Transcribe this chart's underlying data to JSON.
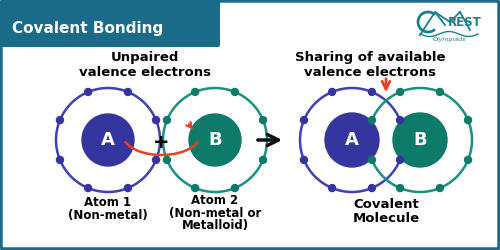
{
  "bg_color": "#ffffff",
  "border_color": "#1a6b8a",
  "header_color": "#1a6b8a",
  "header_text": "Covalent Bonding",
  "header_text_color": "#ffffff",
  "atom_a_nucleus_color": "#3535a0",
  "atom_a_orbit_color": "#4040b8",
  "atom_a_label": "A",
  "atom_b_nucleus_color": "#0e7a6a",
  "atom_b_orbit_color": "#1a9080",
  "atom_b_label": "B",
  "electron_color_a": "#3535a0",
  "electron_color_b": "#0e7a6a",
  "label1_line1": "Unpaired",
  "label1_line2": "valence electrons",
  "label2_line1": "Sharing of available",
  "label2_line2": "valence electrons",
  "atom1_label_line1": "Atom 1",
  "atom1_label_line2": "(Non-metal)",
  "atom2_label_line1": "Atom 2",
  "atom2_label_line2": "(Non-metal or",
  "atom2_label_line3": "Metalloid)",
  "molecule_label1": "Covalent",
  "molecule_label2": "Molecule",
  "arrow_color": "#e84020",
  "main_arrow_color": "#111111",
  "plus_sign": "+",
  "crest_teal": "#1a8090",
  "crest_logo_color": "#1a8090"
}
